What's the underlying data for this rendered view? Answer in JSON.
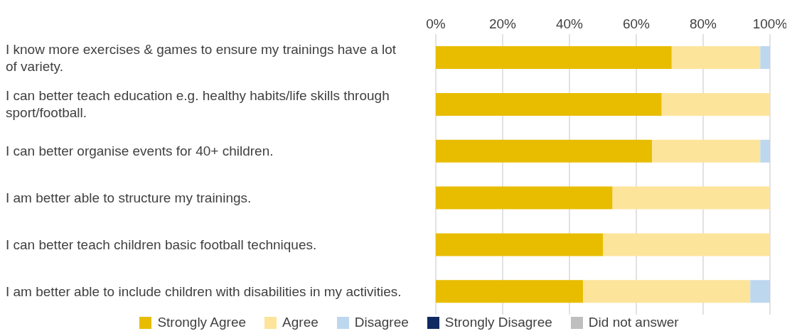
{
  "chart_data": {
    "type": "bar",
    "orientation": "horizontal",
    "stacked": true,
    "categories": [
      "I know more exercises & games to ensure my trainings have a lot of variety.",
      "I can better teach education e.g. healthy habits/life skills through sport/football.",
      "I can better organise events for 40+ children.",
      "I am better able to structure my trainings.",
      "I can better teach children basic football techniques.",
      "I am better able to include children with disabilities in my activities."
    ],
    "series": [
      {
        "name": "Strongly Agree",
        "color": "#e8bd00",
        "values": [
          70.6,
          67.6,
          64.7,
          52.9,
          50,
          44.1
        ]
      },
      {
        "name": "Agree",
        "color": "#fde49b",
        "values": [
          26.5,
          32.4,
          32.4,
          47.1,
          50,
          50
        ]
      },
      {
        "name": "Disagree",
        "color": "#bdd7ee",
        "values": [
          2.9,
          0,
          2.9,
          0,
          0,
          5.9
        ]
      },
      {
        "name": "Strongly Disagree",
        "color": "#0f2a62",
        "values": [
          0,
          0,
          0,
          0,
          0,
          0
        ]
      },
      {
        "name": "Did not answer",
        "color": "#bfbfbf",
        "values": [
          0,
          0,
          0,
          0,
          0,
          0
        ]
      }
    ],
    "xlim": [
      0,
      100
    ],
    "xticks": [
      {
        "value": 0,
        "label": "0%"
      },
      {
        "value": 20,
        "label": "20%"
      },
      {
        "value": 40,
        "label": "40%"
      },
      {
        "value": 60,
        "label": "60%"
      },
      {
        "value": 80,
        "label": "80%"
      },
      {
        "value": 100,
        "label": "100%"
      }
    ],
    "grid": "x",
    "legend": "bottom"
  }
}
